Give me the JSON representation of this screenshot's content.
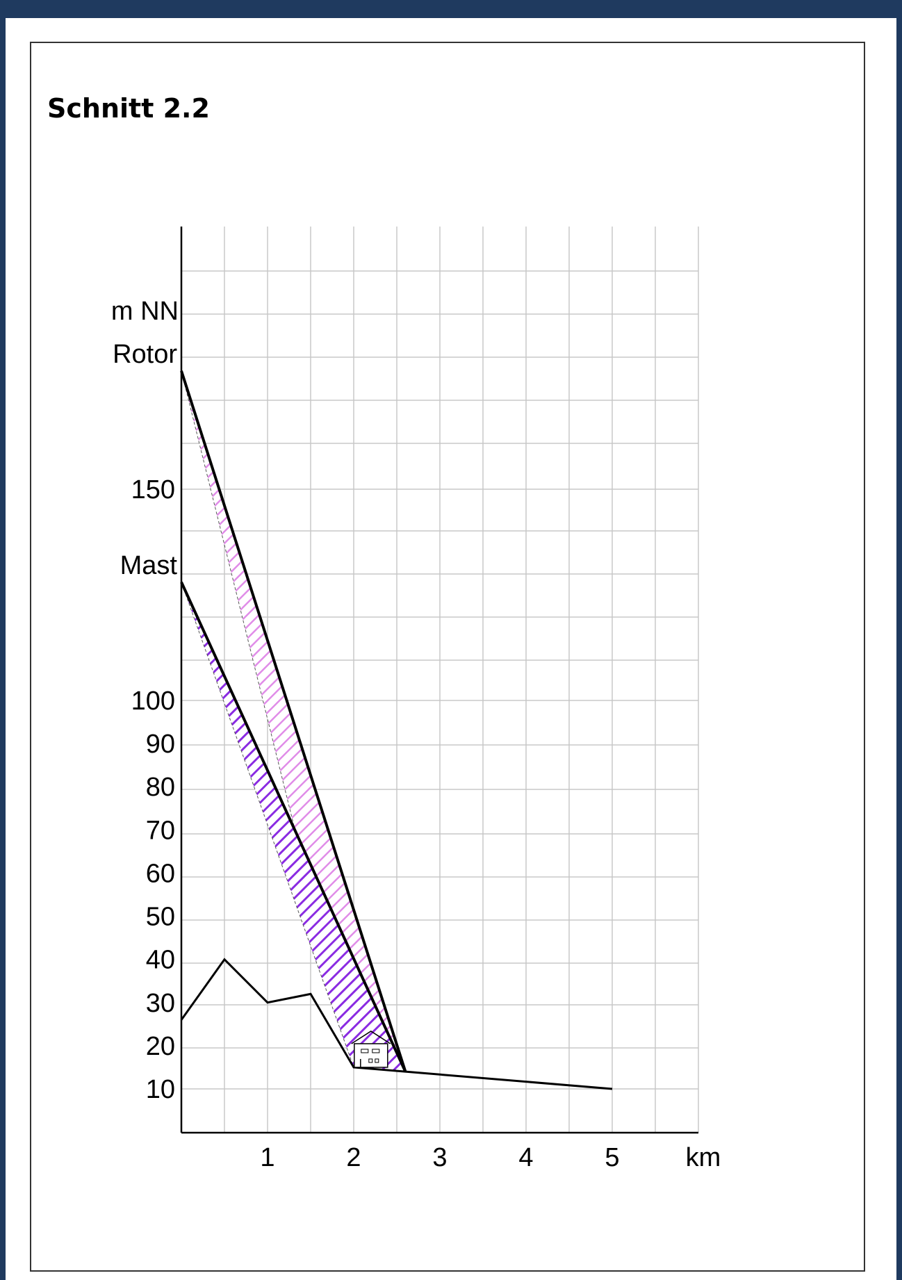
{
  "title": "Schnitt 2.2",
  "colors": {
    "background": "#1f3a5f",
    "grid": "#c8c8c8",
    "line": "#000000",
    "mast_hatch": "#8a2be2",
    "rotor_hatch": "#e08ce8"
  },
  "chart_data": {
    "type": "line",
    "title": "Schnitt 2.2",
    "xlabel": "km",
    "ylabel": "m NN",
    "x_ticks": [
      "1",
      "2",
      "3",
      "4",
      "5"
    ],
    "y_ticks": [
      "10",
      "20",
      "30",
      "40",
      "50",
      "60",
      "70",
      "80",
      "90",
      "100",
      "150"
    ],
    "y_special_labels": [
      "Mast",
      "Rotor"
    ],
    "xlim": [
      0,
      6
    ],
    "grid": true,
    "series": [
      {
        "points": [
          [
            0,
            26
          ],
          [
            0.5,
            40
          ],
          [
            1,
            30
          ],
          [
            1.5,
            32
          ],
          [
            2,
            15
          ],
          [
            2.6,
            14
          ],
          [
            5,
            10
          ]
        ]
      },
      {
        "points": [
          [
            0,
            128
          ],
          [
            2.6,
            14
          ]
        ]
      },
      {
        "points": [
          [
            0,
            178
          ],
          [
            2.6,
            14
          ]
        ]
      }
    ],
    "annotations": [
      {
        "icon": "house-icon",
        "x": 2.2,
        "y": 15
      }
    ]
  }
}
